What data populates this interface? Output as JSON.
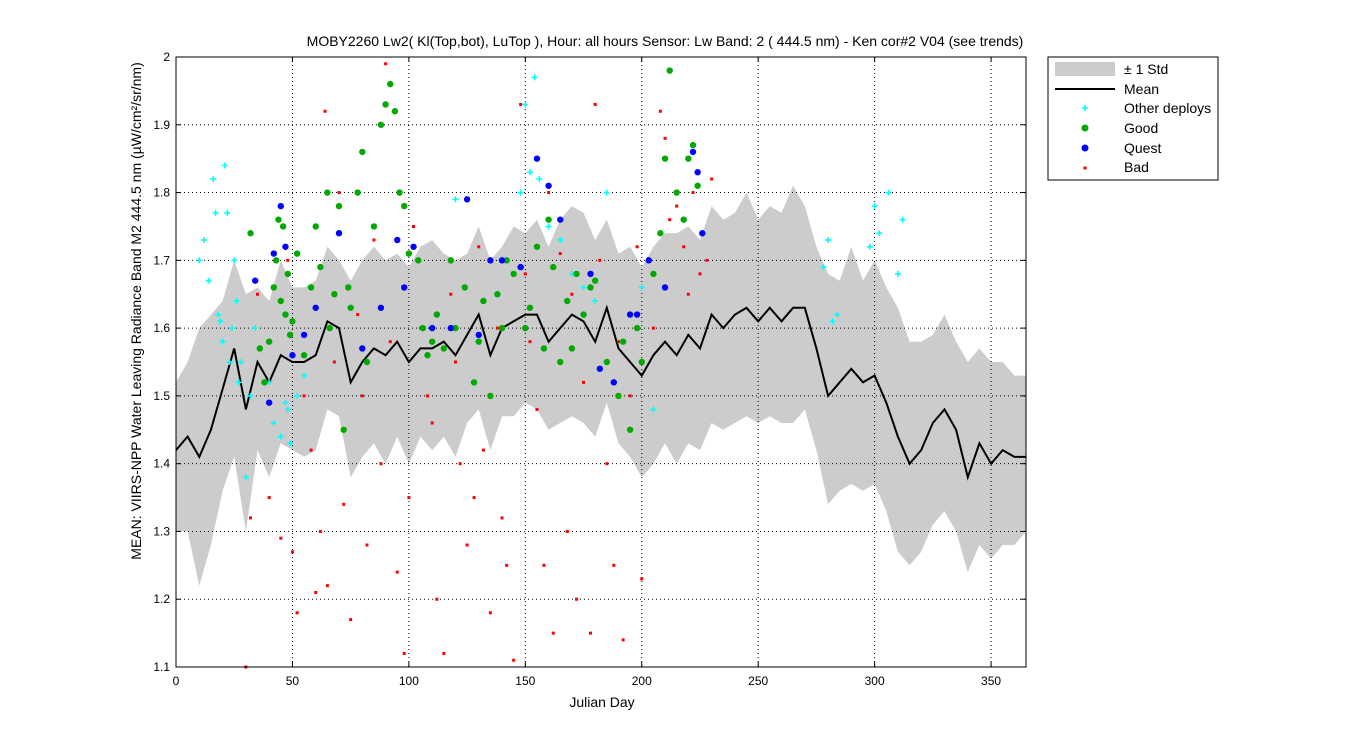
{
  "chart_data": {
    "type": "scatter",
    "title": "MOBY2260   Lw2( Kl(Top,bot), LuTop ),   Hour: all hours  Sensor: Lw Band: 2 ( 444.5 nm)  - Ken cor#2 V04 (see trends)",
    "xlabel": "Julian Day",
    "ylabel": "MEAN: VIIRS-NPP Water Leaving Radiance Band M2 444.5 nm (µW/cm²/sr/nm)",
    "xlim": [
      0,
      365
    ],
    "ylim": [
      1.1,
      2.0
    ],
    "xticks": [
      "0",
      "50",
      "100",
      "150",
      "200",
      "250",
      "300",
      "350"
    ],
    "yticks": [
      "1.1",
      "1.2",
      "1.3",
      "1.4",
      "1.5",
      "1.6",
      "1.7",
      "1.8",
      "1.9",
      "2"
    ],
    "grid": true,
    "legend_position": "outside-top-right",
    "legend": [
      "± 1 Std",
      "Mean",
      "Other deploys",
      "Good",
      "Quest",
      "Bad"
    ],
    "colors": {
      "std_band": "#cccccc",
      "mean": "#000000",
      "other": "#00ffff",
      "good": "#00aa00",
      "quest": "#0000ff",
      "bad": "#ff0000"
    },
    "mean": {
      "x": [
        0,
        5,
        10,
        15,
        20,
        25,
        30,
        35,
        40,
        45,
        50,
        55,
        60,
        65,
        70,
        75,
        80,
        85,
        90,
        95,
        100,
        105,
        110,
        115,
        120,
        125,
        130,
        135,
        140,
        145,
        150,
        155,
        160,
        165,
        170,
        175,
        180,
        185,
        190,
        195,
        200,
        205,
        210,
        215,
        220,
        225,
        230,
        235,
        240,
        245,
        250,
        255,
        260,
        265,
        270,
        275,
        280,
        285,
        290,
        295,
        300,
        305,
        310,
        315,
        320,
        325,
        330,
        335,
        340,
        345,
        350,
        355,
        360,
        365
      ],
      "y": [
        1.42,
        1.44,
        1.41,
        1.45,
        1.51,
        1.57,
        1.48,
        1.55,
        1.52,
        1.56,
        1.55,
        1.55,
        1.56,
        1.61,
        1.6,
        1.52,
        1.55,
        1.57,
        1.56,
        1.58,
        1.55,
        1.57,
        1.57,
        1.58,
        1.56,
        1.59,
        1.62,
        1.56,
        1.6,
        1.61,
        1.62,
        1.62,
        1.58,
        1.6,
        1.62,
        1.61,
        1.58,
        1.63,
        1.57,
        1.55,
        1.53,
        1.56,
        1.58,
        1.56,
        1.59,
        1.57,
        1.62,
        1.6,
        1.62,
        1.63,
        1.61,
        1.63,
        1.61,
        1.63,
        1.63,
        1.57,
        1.5,
        1.52,
        1.54,
        1.52,
        1.53,
        1.49,
        1.44,
        1.4,
        1.42,
        1.46,
        1.48,
        1.45,
        1.38,
        1.43,
        1.4,
        1.42,
        1.41,
        1.41
      ]
    },
    "std": {
      "upper": [
        1.52,
        1.55,
        1.6,
        1.62,
        1.64,
        1.7,
        1.65,
        1.66,
        1.64,
        1.7,
        1.66,
        1.66,
        1.67,
        1.72,
        1.7,
        1.67,
        1.7,
        1.72,
        1.7,
        1.71,
        1.69,
        1.72,
        1.73,
        1.71,
        1.7,
        1.71,
        1.75,
        1.7,
        1.72,
        1.75,
        1.74,
        1.76,
        1.72,
        1.76,
        1.78,
        1.77,
        1.73,
        1.76,
        1.71,
        1.72,
        1.69,
        1.72,
        1.74,
        1.74,
        1.75,
        1.73,
        1.78,
        1.76,
        1.77,
        1.8,
        1.76,
        1.78,
        1.77,
        1.81,
        1.78,
        1.72,
        1.68,
        1.67,
        1.72,
        1.67,
        1.7,
        1.66,
        1.63,
        1.58,
        1.58,
        1.59,
        1.62,
        1.58,
        1.55,
        1.57,
        1.55,
        1.55,
        1.53,
        1.53
      ],
      "lower": [
        1.3,
        1.3,
        1.22,
        1.28,
        1.36,
        1.41,
        1.3,
        1.42,
        1.38,
        1.43,
        1.42,
        1.41,
        1.42,
        1.48,
        1.47,
        1.38,
        1.41,
        1.43,
        1.4,
        1.44,
        1.4,
        1.44,
        1.42,
        1.44,
        1.41,
        1.46,
        1.48,
        1.42,
        1.47,
        1.47,
        1.49,
        1.48,
        1.45,
        1.46,
        1.47,
        1.46,
        1.44,
        1.49,
        1.43,
        1.41,
        1.38,
        1.4,
        1.43,
        1.4,
        1.43,
        1.42,
        1.46,
        1.45,
        1.46,
        1.47,
        1.46,
        1.47,
        1.46,
        1.46,
        1.48,
        1.42,
        1.34,
        1.36,
        1.37,
        1.36,
        1.37,
        1.33,
        1.27,
        1.25,
        1.27,
        1.31,
        1.33,
        1.3,
        1.24,
        1.28,
        1.26,
        1.28,
        1.28,
        1.3
      ]
    },
    "other_deploys": {
      "x": [
        10,
        12,
        14,
        16,
        17,
        18,
        19,
        20,
        21,
        22,
        23,
        24,
        25,
        26,
        27,
        28,
        30,
        32,
        34,
        36,
        40,
        42,
        45,
        47,
        48,
        49,
        52,
        55,
        120,
        148,
        150,
        152,
        154,
        156,
        160,
        165,
        170,
        175,
        180,
        185,
        195,
        200,
        205,
        278,
        280,
        282,
        284,
        298,
        300,
        302,
        306,
        310,
        312
      ],
      "y": [
        1.7,
        1.73,
        1.67,
        1.82,
        1.77,
        1.62,
        1.61,
        1.58,
        1.84,
        1.77,
        1.55,
        1.6,
        1.7,
        1.64,
        1.52,
        1.55,
        1.38,
        1.5,
        1.6,
        1.57,
        1.52,
        1.46,
        1.44,
        1.49,
        1.48,
        1.43,
        1.5,
        1.53,
        1.79,
        1.8,
        1.93,
        1.83,
        1.97,
        1.82,
        1.75,
        1.73,
        1.68,
        1.66,
        1.64,
        1.8,
        1.62,
        1.66,
        1.48,
        1.69,
        1.73,
        1.61,
        1.62,
        1.72,
        1.78,
        1.74,
        1.8,
        1.68,
        1.76
      ]
    },
    "good": {
      "x": [
        32,
        36,
        38,
        40,
        42,
        43,
        44,
        45,
        46,
        47,
        48,
        49,
        50,
        52,
        55,
        58,
        60,
        62,
        65,
        66,
        68,
        70,
        72,
        74,
        75,
        78,
        80,
        82,
        85,
        88,
        90,
        92,
        94,
        96,
        98,
        100,
        104,
        106,
        108,
        110,
        112,
        115,
        118,
        120,
        124,
        128,
        130,
        132,
        135,
        138,
        140,
        142,
        145,
        150,
        152,
        155,
        158,
        160,
        162,
        165,
        168,
        170,
        172,
        175,
        178,
        180,
        185,
        190,
        192,
        195,
        198,
        200,
        205,
        208,
        210,
        212,
        215,
        218,
        220,
        222,
        224
      ],
      "y": [
        1.74,
        1.57,
        1.52,
        1.58,
        1.66,
        1.7,
        1.76,
        1.64,
        1.75,
        1.62,
        1.68,
        1.59,
        1.61,
        1.71,
        1.56,
        1.66,
        1.75,
        1.69,
        1.8,
        1.6,
        1.65,
        1.78,
        1.45,
        1.66,
        1.63,
        1.8,
        1.86,
        1.55,
        1.75,
        1.9,
        1.93,
        1.96,
        1.92,
        1.8,
        1.78,
        1.71,
        1.7,
        1.6,
        1.56,
        1.58,
        1.62,
        1.57,
        1.7,
        1.6,
        1.66,
        1.52,
        1.58,
        1.64,
        1.5,
        1.65,
        1.6,
        1.7,
        1.68,
        1.6,
        1.63,
        1.72,
        1.57,
        1.76,
        1.69,
        1.55,
        1.64,
        1.57,
        1.68,
        1.62,
        1.66,
        1.67,
        1.55,
        1.5,
        1.58,
        1.45,
        1.6,
        1.55,
        1.68,
        1.74,
        1.85,
        1.98,
        1.8,
        1.76,
        1.85,
        1.87,
        1.81
      ]
    },
    "quest": {
      "x": [
        34,
        40,
        42,
        45,
        47,
        50,
        55,
        60,
        70,
        80,
        88,
        95,
        98,
        102,
        110,
        118,
        125,
        130,
        135,
        140,
        148,
        155,
        160,
        165,
        178,
        182,
        188,
        195,
        198,
        203,
        210,
        222,
        224,
        226
      ],
      "y": [
        1.67,
        1.49,
        1.71,
        1.78,
        1.72,
        1.56,
        1.59,
        1.63,
        1.74,
        1.57,
        1.63,
        1.73,
        1.66,
        1.72,
        1.6,
        1.6,
        1.79,
        1.59,
        1.7,
        1.7,
        1.69,
        1.85,
        1.81,
        1.76,
        1.68,
        1.54,
        1.52,
        1.62,
        1.62,
        1.7,
        1.66,
        1.86,
        1.83,
        1.74
      ]
    },
    "bad": {
      "x": [
        30,
        32,
        35,
        38,
        40,
        45,
        48,
        50,
        52,
        55,
        58,
        60,
        62,
        64,
        65,
        68,
        70,
        72,
        75,
        78,
        80,
        82,
        85,
        88,
        90,
        92,
        95,
        98,
        100,
        102,
        105,
        108,
        110,
        112,
        115,
        118,
        120,
        122,
        125,
        128,
        130,
        132,
        135,
        138,
        140,
        142,
        145,
        148,
        150,
        152,
        155,
        158,
        160,
        162,
        165,
        168,
        170,
        172,
        175,
        178,
        180,
        182,
        185,
        188,
        190,
        192,
        195,
        198,
        200,
        205,
        208,
        210,
        212,
        215,
        218,
        220,
        222,
        225,
        228,
        230
      ],
      "y": [
        1.1,
        1.32,
        1.65,
        1.52,
        1.35,
        1.29,
        1.7,
        1.27,
        1.18,
        1.5,
        1.42,
        1.21,
        1.3,
        1.92,
        1.22,
        1.55,
        1.8,
        1.34,
        1.17,
        1.62,
        1.5,
        1.28,
        1.73,
        1.4,
        1.99,
        1.58,
        1.24,
        1.12,
        1.35,
        1.75,
        1.6,
        1.5,
        1.46,
        1.2,
        1.12,
        1.65,
        1.55,
        1.4,
        1.28,
        1.35,
        1.72,
        1.42,
        1.18,
        1.6,
        1.32,
        1.25,
        1.11,
        1.93,
        1.68,
        1.58,
        1.48,
        1.25,
        1.8,
        1.15,
        1.71,
        1.3,
        1.65,
        1.2,
        1.52,
        1.15,
        1.93,
        1.7,
        1.4,
        1.25,
        1.58,
        1.14,
        1.5,
        1.72,
        1.23,
        1.6,
        1.92,
        1.88,
        1.76,
        1.78,
        1.72,
        1.65,
        1.8,
        1.68,
        1.7,
        1.82
      ]
    }
  }
}
